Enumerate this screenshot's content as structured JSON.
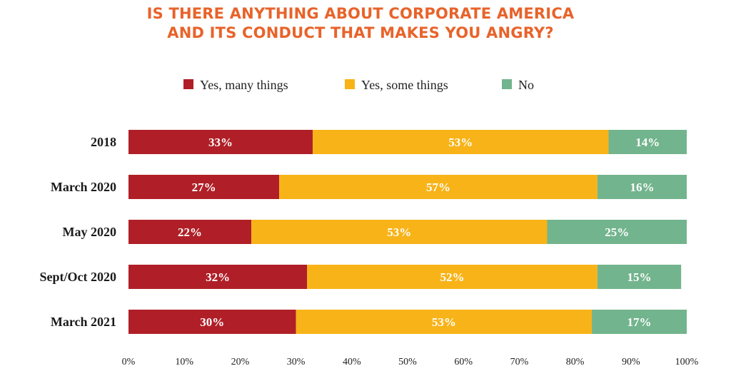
{
  "chart_data": {
    "type": "bar",
    "orientation": "horizontal",
    "stacked": true,
    "title": "IS THERE ANYTHING ABOUT CORPORATE AMERICA AND ITS CONDUCT THAT MAKES YOU ANGRY?",
    "title_lines": [
      "IS THERE ANYTHING ABOUT CORPORATE AMERICA",
      "AND ITS CONDUCT THAT MAKES YOU ANGRY?"
    ],
    "categories": [
      "2018",
      "March 2020",
      "May 2020",
      "Sept/Oct 2020",
      "March 2021"
    ],
    "series": [
      {
        "name": "Yes, many things",
        "color": "#b01f27",
        "values": [
          33,
          27,
          22,
          32,
          30
        ]
      },
      {
        "name": "Yes, some things",
        "color": "#f7b318",
        "values": [
          53,
          57,
          53,
          52,
          53
        ]
      },
      {
        "name": "No",
        "color": "#72b48d",
        "values": [
          14,
          16,
          25,
          15,
          17
        ]
      }
    ],
    "xlim": [
      0,
      100
    ],
    "x_ticks": [
      0,
      10,
      20,
      30,
      40,
      50,
      60,
      70,
      80,
      90,
      100
    ],
    "x_tick_labels": [
      "0%",
      "10%",
      "20%",
      "30%",
      "40%",
      "50%",
      "60%",
      "70%",
      "80%",
      "90%",
      "100%"
    ],
    "value_suffix": "%",
    "legend_position": "top",
    "grid": false,
    "title_color": "#e8632a"
  }
}
